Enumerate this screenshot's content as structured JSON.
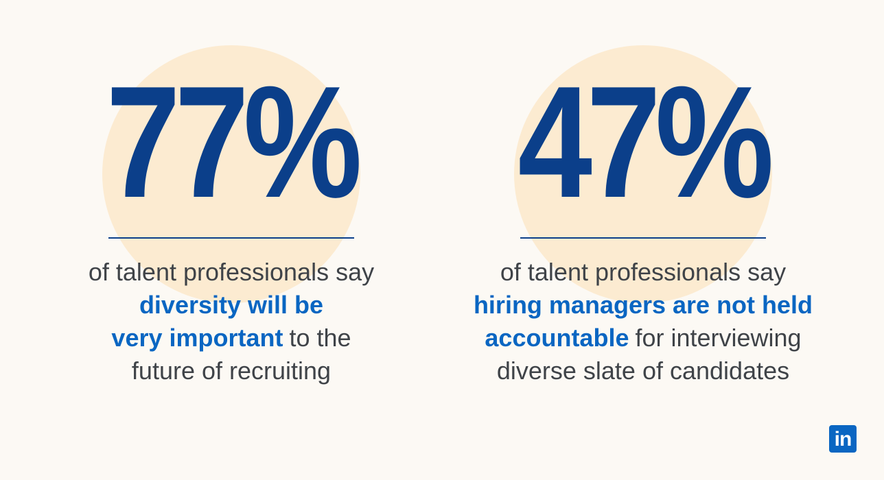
{
  "stats": [
    {
      "value": "77%",
      "lines": [
        [
          {
            "text": "of talent professionals say",
            "highlight": false
          }
        ],
        [
          {
            "text": "diversity will be",
            "highlight": true
          }
        ],
        [
          {
            "text": "very important",
            "highlight": true
          },
          {
            "text": "to the",
            "highlight": false
          }
        ],
        [
          {
            "text": "future of recruiting",
            "highlight": false
          }
        ]
      ]
    },
    {
      "value": "47%",
      "lines": [
        [
          {
            "text": "of talent professionals say",
            "highlight": false
          }
        ],
        [
          {
            "text": "hiring managers are not held",
            "highlight": true
          }
        ],
        [
          {
            "text": "accountable",
            "highlight": true
          },
          {
            "text": "for interviewing",
            "highlight": false
          }
        ],
        [
          {
            "text": "diverse slate of candidates",
            "highlight": false
          }
        ]
      ]
    }
  ],
  "logo": {
    "text": "in"
  }
}
